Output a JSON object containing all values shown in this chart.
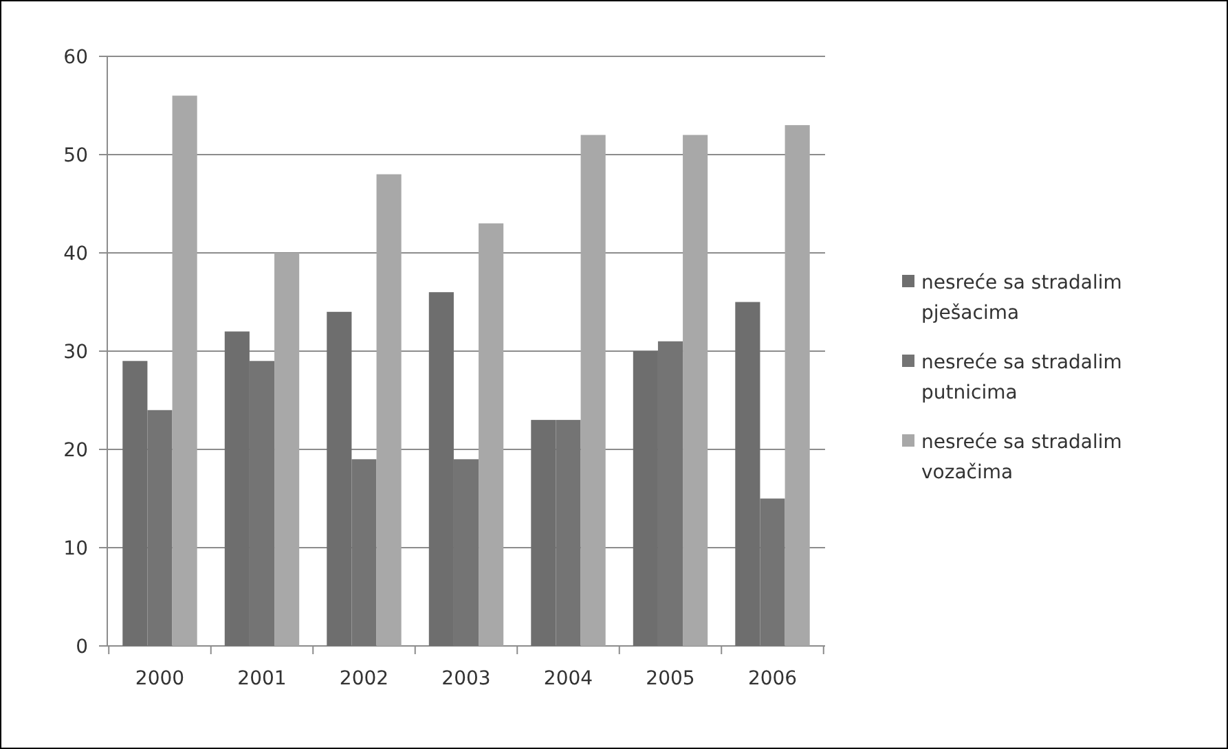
{
  "chart_data": {
    "type": "bar",
    "categories": [
      "2000",
      "2001",
      "2002",
      "2003",
      "2004",
      "2005",
      "2006"
    ],
    "series": [
      {
        "name": "nesreće sa stradalim pješacima",
        "color": "#6e6e6e",
        "values": [
          29,
          32,
          34,
          36,
          23,
          30,
          35
        ]
      },
      {
        "name": "nesreće sa stradalim putnicima",
        "color": "#747474",
        "values": [
          24,
          29,
          19,
          19,
          23,
          31,
          15
        ]
      },
      {
        "name": "nesreće sa stradalim vozačima",
        "color": "#a8a8a8",
        "values": [
          56,
          40,
          48,
          43,
          52,
          52,
          53
        ]
      }
    ],
    "ylim": [
      0,
      60
    ],
    "yticks": [
      0,
      10,
      20,
      30,
      40,
      50,
      60
    ],
    "grid": "y",
    "legend": "right"
  }
}
